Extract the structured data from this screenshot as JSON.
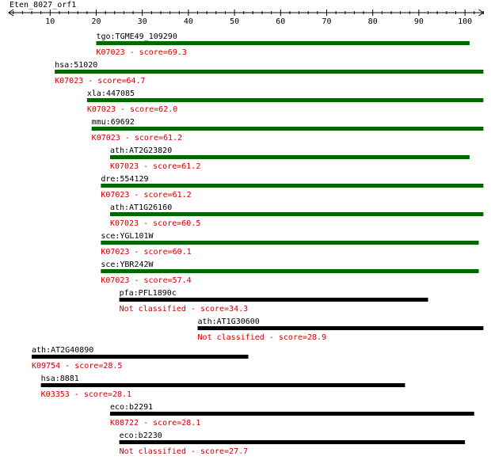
{
  "title": "Eten_8027_orf1",
  "chart_data": {
    "type": "bar",
    "axis": {
      "min": 1,
      "max": 104,
      "ticks": [
        10,
        20,
        30,
        40,
        50,
        60,
        70,
        80,
        90,
        100
      ]
    },
    "hits": [
      {
        "name": "tgo:TGME49_109290",
        "label": "K07023 - score=69.3",
        "start": 20,
        "end": 101,
        "color": "#006600"
      },
      {
        "name": "hsa:51020",
        "label": "K07023 - score=64.7",
        "start": 11,
        "end": 104,
        "color": "#006600"
      },
      {
        "name": "xla:447085",
        "label": "K07023 - score=62.0",
        "start": 18,
        "end": 104,
        "color": "#006600"
      },
      {
        "name": "mmu:69692",
        "label": "K07023 - score=61.2",
        "start": 19,
        "end": 104,
        "color": "#006600"
      },
      {
        "name": "ath:AT2G23820",
        "label": "K07023 - score=61.2",
        "start": 23,
        "end": 101,
        "color": "#006600"
      },
      {
        "name": "dre:554129",
        "label": "K07023 - score=61.2",
        "start": 21,
        "end": 104,
        "color": "#006600"
      },
      {
        "name": "ath:AT1G26160",
        "label": "K07023 - score=60.5",
        "start": 23,
        "end": 104,
        "color": "#006600"
      },
      {
        "name": "sce:YGL101W",
        "label": "K07023 - score=60.1",
        "start": 21,
        "end": 103,
        "color": "#006600"
      },
      {
        "name": "sce:YBR242W",
        "label": "K07023 - score=57.4",
        "start": 21,
        "end": 103,
        "color": "#006600"
      },
      {
        "name": "pfa:PFL1890c",
        "label": "Not classified - score=34.3",
        "start": 25,
        "end": 92,
        "color": "#000000"
      },
      {
        "name": "ath:AT1G30600",
        "label": "Not classified - score=28.9",
        "start": 42,
        "end": 104,
        "color": "#000000"
      },
      {
        "name": "ath:AT2G40890",
        "label": "K09754 - score=28.5",
        "start": 6,
        "end": 53,
        "color": "#000000"
      },
      {
        "name": "hsa:8881",
        "label": "K03353 - score=28.1",
        "start": 8,
        "end": 87,
        "color": "#000000"
      },
      {
        "name": "eco:b2291",
        "label": "K08722 - score=28.1",
        "start": 23,
        "end": 102,
        "color": "#000000"
      },
      {
        "name": "eco:b2230",
        "label": "Not classified - score=27.7",
        "start": 25,
        "end": 100,
        "color": "#000000"
      }
    ]
  }
}
